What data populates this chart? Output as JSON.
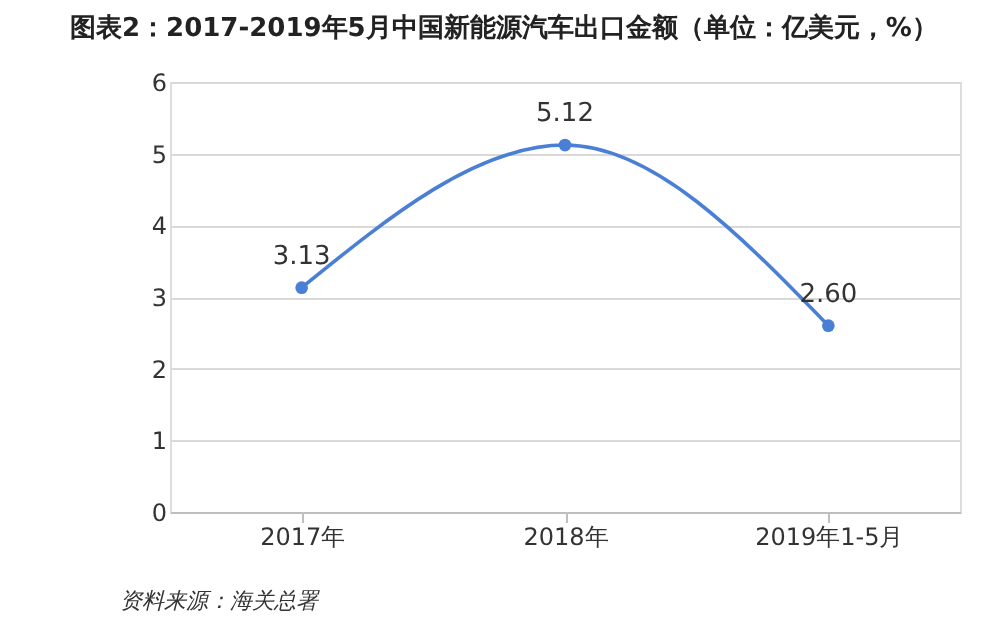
{
  "chart_data": {
    "type": "line",
    "title": "图表2：2017-2019年5月中国新能源汽车出口金额（单位：亿美元，%）",
    "categories": [
      "2017年",
      "2018年",
      "2019年1-5月"
    ],
    "series": [
      {
        "color": "#4a7fd6",
        "values": [
          3.13,
          5.12,
          2.6
        ],
        "value_labels": [
          "3.13",
          "5.12",
          "2.60"
        ]
      }
    ],
    "ylim": [
      0,
      6
    ],
    "yticks": [
      0,
      1,
      2,
      3,
      4,
      5,
      6
    ],
    "grid": "y",
    "marker": "circle",
    "line_style": "solid",
    "annotations": [
      "资料来源：海关总署"
    ]
  }
}
